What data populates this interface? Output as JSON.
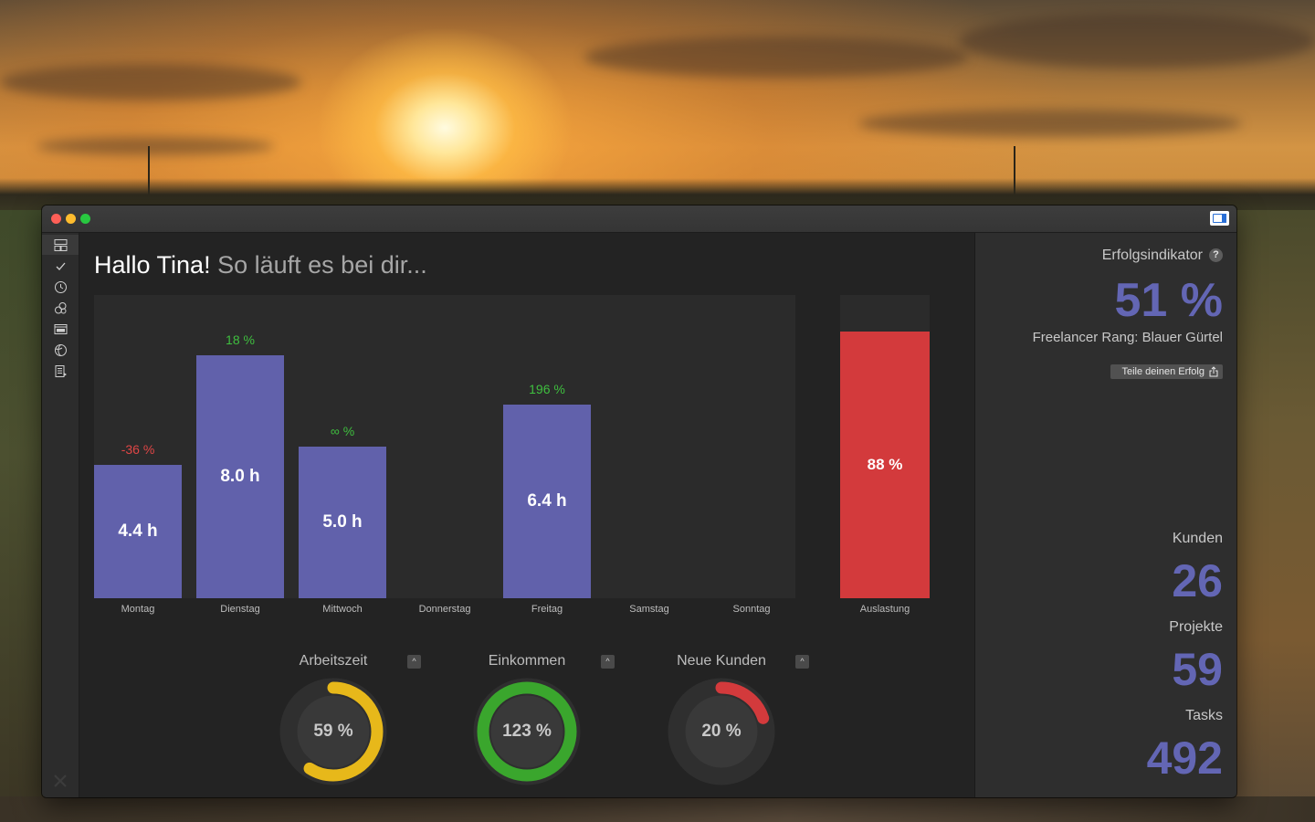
{
  "window": {
    "controls": [
      "close-button",
      "minimize-button",
      "zoom-button"
    ],
    "toolbar_icon": "sidebar-toggle-icon"
  },
  "nav": {
    "items": [
      {
        "icon": "dashboard-icon",
        "active": true
      },
      {
        "icon": "checkmark-icon"
      },
      {
        "icon": "clock-icon"
      },
      {
        "icon": "coins-icon"
      },
      {
        "icon": "calendar-100-icon"
      },
      {
        "icon": "globe-icon"
      },
      {
        "icon": "document-list-icon"
      }
    ],
    "bottom_icon": "tools-icon"
  },
  "greeting": {
    "hello": "Hallo Tina!",
    "subtitle": "So läuft es bei dir..."
  },
  "chart_data": {
    "type": "bar",
    "categories": [
      "Montag",
      "Dienstag",
      "Mittwoch",
      "Donnerstag",
      "Freitag",
      "Samstag",
      "Sonntag"
    ],
    "values": [
      4.4,
      8.0,
      5.0,
      0,
      6.4,
      0,
      0
    ],
    "value_labels": [
      "4.4 h",
      "8.0 h",
      "5.0 h",
      "",
      "6.4 h",
      "",
      ""
    ],
    "change_labels": [
      "-36 %",
      "18 %",
      "∞ %",
      "",
      "196 %",
      "",
      ""
    ],
    "change_colors": [
      "#e04646",
      "#3fbf3f",
      "#3fbf3f",
      "",
      "#3fbf3f",
      "",
      ""
    ],
    "bar_color": "#6161ab",
    "ylim": [
      0,
      10
    ],
    "utilization": {
      "label": "Auslastung",
      "value": 88,
      "text": "88 %",
      "color": "#d33a3c"
    }
  },
  "gauges": [
    {
      "title": "Arbeitszeit",
      "value": 59,
      "text": "59 %",
      "color": "#e7b81a"
    },
    {
      "title": "Einkommen",
      "value": 123,
      "text": "123 %",
      "color": "#3aa62d"
    },
    {
      "title": "Neue Kunden",
      "value": 20,
      "text": "20 %",
      "color": "#d33a3c"
    }
  ],
  "gauge_button_glyph": "^",
  "panel": {
    "title": "Erfolgsindikator",
    "help": "?",
    "success_pct": "51 %",
    "rank": "Freelancer Rang: Blauer Gürtel",
    "share_label": "Teile deinen Erfolg",
    "stats": [
      {
        "label": "Kunden",
        "value": "26"
      },
      {
        "label": "Projekte",
        "value": "59"
      },
      {
        "label": "Tasks",
        "value": "492"
      }
    ],
    "accent": "#6366b4"
  }
}
